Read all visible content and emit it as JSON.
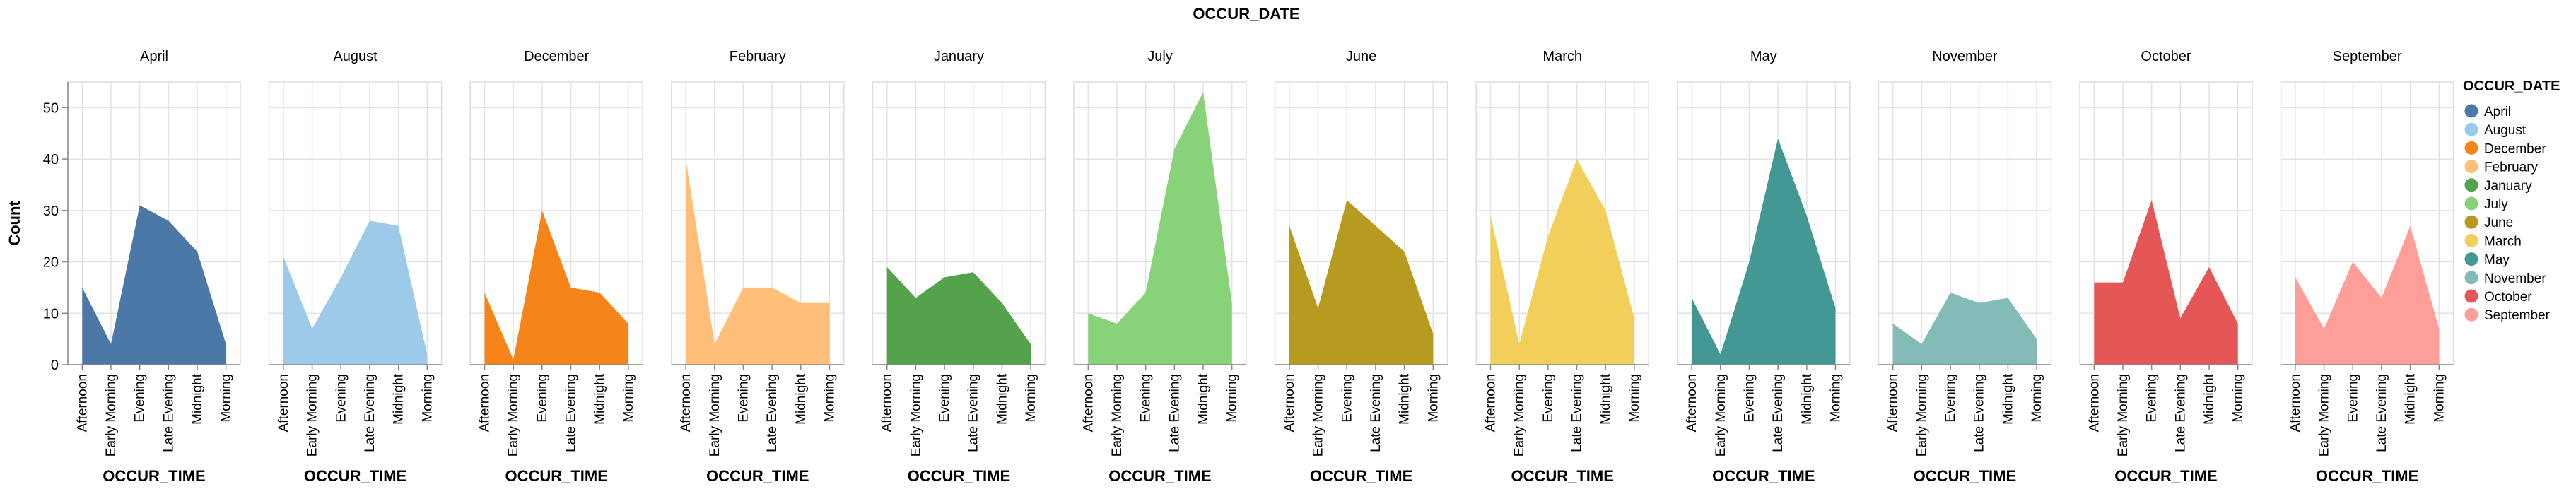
{
  "chart_data": {
    "type": "area",
    "facet_title": "OCCUR_DATE",
    "xlabel": "OCCUR_TIME",
    "ylabel": "Count",
    "ylim": [
      0,
      55
    ],
    "yticks": [
      0,
      10,
      20,
      30,
      40,
      50
    ],
    "grid": true,
    "legend_position": "right",
    "legend_title": "OCCUR_DATE",
    "categories": [
      "Afternoon",
      "Early Morning",
      "Evening",
      "Late Evening",
      "Midnight",
      "Morning"
    ],
    "series": [
      {
        "name": "April",
        "color": "#4c78a8",
        "values": [
          15,
          4,
          31,
          28,
          22,
          4
        ]
      },
      {
        "name": "August",
        "color": "#9ecae9",
        "values": [
          21,
          7,
          17,
          28,
          27,
          2
        ]
      },
      {
        "name": "December",
        "color": "#f58518",
        "values": [
          14,
          1,
          30,
          15,
          14,
          8
        ]
      },
      {
        "name": "February",
        "color": "#ffbf79",
        "values": [
          40,
          4,
          15,
          15,
          12,
          12
        ]
      },
      {
        "name": "January",
        "color": "#54a24b",
        "values": [
          19,
          13,
          17,
          18,
          12,
          4
        ]
      },
      {
        "name": "July",
        "color": "#88d27a",
        "values": [
          10,
          8,
          14,
          42,
          53,
          12
        ]
      },
      {
        "name": "June",
        "color": "#b79a20",
        "values": [
          27,
          11,
          32,
          27,
          22,
          6
        ]
      },
      {
        "name": "March",
        "color": "#f2cf5b",
        "values": [
          29,
          4,
          25,
          40,
          30,
          9
        ]
      },
      {
        "name": "May",
        "color": "#439894",
        "values": [
          13,
          2,
          20,
          44,
          29,
          11
        ]
      },
      {
        "name": "November",
        "color": "#83bcb6",
        "values": [
          8,
          4,
          14,
          12,
          13,
          5
        ]
      },
      {
        "name": "October",
        "color": "#e45756",
        "values": [
          16,
          16,
          32,
          9,
          19,
          8
        ]
      },
      {
        "name": "September",
        "color": "#ff9d98",
        "values": [
          17,
          7,
          20,
          13,
          27,
          7
        ]
      }
    ]
  }
}
